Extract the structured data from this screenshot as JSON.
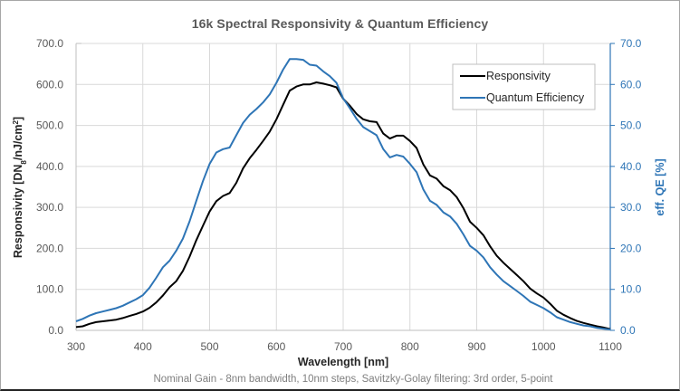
{
  "chart_data": {
    "type": "line",
    "title": "16k Spectral Responsivity & Quantum Efficiency",
    "xlabel": "Wavelength [nm]",
    "ylabel": "Responsivity [DN8/nJ/cm2]",
    "ylabel_parts": {
      "base": "Responsivity [DN",
      "sub": "8",
      "mid": "/nJ/cm",
      "sup": "2",
      "end": "]"
    },
    "y2label": "eff. QE [%]",
    "footnote": "Nominal Gain - 8nm bandwidth, 10nm steps, Savitzky-Golay filtering: 3rd order, 5-point",
    "xlim": [
      300,
      1100
    ],
    "ylim": [
      0,
      700
    ],
    "y2lim": [
      0,
      70
    ],
    "xticks": [
      "300",
      "400",
      "500",
      "600",
      "700",
      "800",
      "900",
      "1000",
      "1100"
    ],
    "yticks": [
      "0.0",
      "100.0",
      "200.0",
      "300.0",
      "400.0",
      "500.0",
      "600.0",
      "700.0"
    ],
    "y2ticks": [
      "0.0",
      "10.0",
      "20.0",
      "30.0",
      "40.0",
      "50.0",
      "60.0",
      "70.0"
    ],
    "grid": true,
    "legend_position": "top-right",
    "x": [
      300,
      310,
      320,
      330,
      340,
      350,
      360,
      370,
      380,
      390,
      400,
      410,
      420,
      430,
      440,
      450,
      460,
      470,
      480,
      490,
      500,
      510,
      520,
      530,
      540,
      550,
      560,
      570,
      580,
      590,
      600,
      610,
      620,
      630,
      640,
      650,
      660,
      670,
      680,
      690,
      700,
      710,
      720,
      730,
      740,
      750,
      760,
      770,
      780,
      790,
      800,
      810,
      820,
      830,
      840,
      850,
      860,
      870,
      880,
      890,
      900,
      910,
      920,
      930,
      940,
      950,
      960,
      970,
      980,
      990,
      1000,
      1010,
      1020,
      1030,
      1040,
      1050,
      1060,
      1070,
      1080,
      1090,
      1100
    ],
    "series": [
      {
        "name": "Responsivity",
        "axis": "left",
        "color": "#000000",
        "values": [
          8,
          10,
          16,
          20,
          22,
          24,
          26,
          30,
          35,
          40,
          46,
          55,
          68,
          85,
          105,
          120,
          145,
          180,
          220,
          255,
          290,
          315,
          328,
          335,
          360,
          395,
          420,
          440,
          462,
          485,
          515,
          550,
          585,
          595,
          600,
          600,
          605,
          602,
          598,
          593,
          565,
          548,
          528,
          515,
          510,
          508,
          480,
          468,
          475,
          475,
          462,
          445,
          405,
          378,
          370,
          352,
          342,
          325,
          298,
          265,
          250,
          232,
          205,
          182,
          165,
          150,
          135,
          120,
          102,
          90,
          80,
          65,
          48,
          38,
          30,
          23,
          18,
          14,
          10,
          7,
          3
        ]
      },
      {
        "name": "Quantum Efficiency",
        "axis": "right",
        "color": "#2e75b6",
        "values": [
          2.2,
          2.8,
          3.6,
          4.2,
          4.6,
          5.0,
          5.4,
          6.0,
          6.8,
          7.6,
          8.6,
          10.4,
          12.8,
          15.4,
          17.0,
          19.4,
          22.4,
          26.6,
          31.6,
          36.4,
          40.6,
          43.4,
          44.2,
          44.6,
          47.6,
          50.6,
          52.6,
          54.0,
          55.6,
          57.6,
          60.4,
          63.6,
          66.2,
          66.2,
          66.0,
          64.8,
          64.6,
          63.2,
          62.0,
          60.4,
          56.6,
          54.2,
          51.6,
          49.6,
          48.6,
          47.6,
          44.2,
          42.2,
          42.8,
          42.4,
          40.6,
          38.6,
          34.4,
          31.6,
          30.6,
          28.8,
          27.8,
          26.0,
          23.4,
          20.6,
          19.4,
          17.8,
          15.4,
          13.6,
          12.0,
          10.8,
          9.6,
          8.4,
          7.0,
          6.2,
          5.4,
          4.4,
          3.2,
          2.6,
          2.0,
          1.6,
          1.2,
          1.0,
          0.6,
          0.4,
          0.2
        ]
      }
    ]
  }
}
